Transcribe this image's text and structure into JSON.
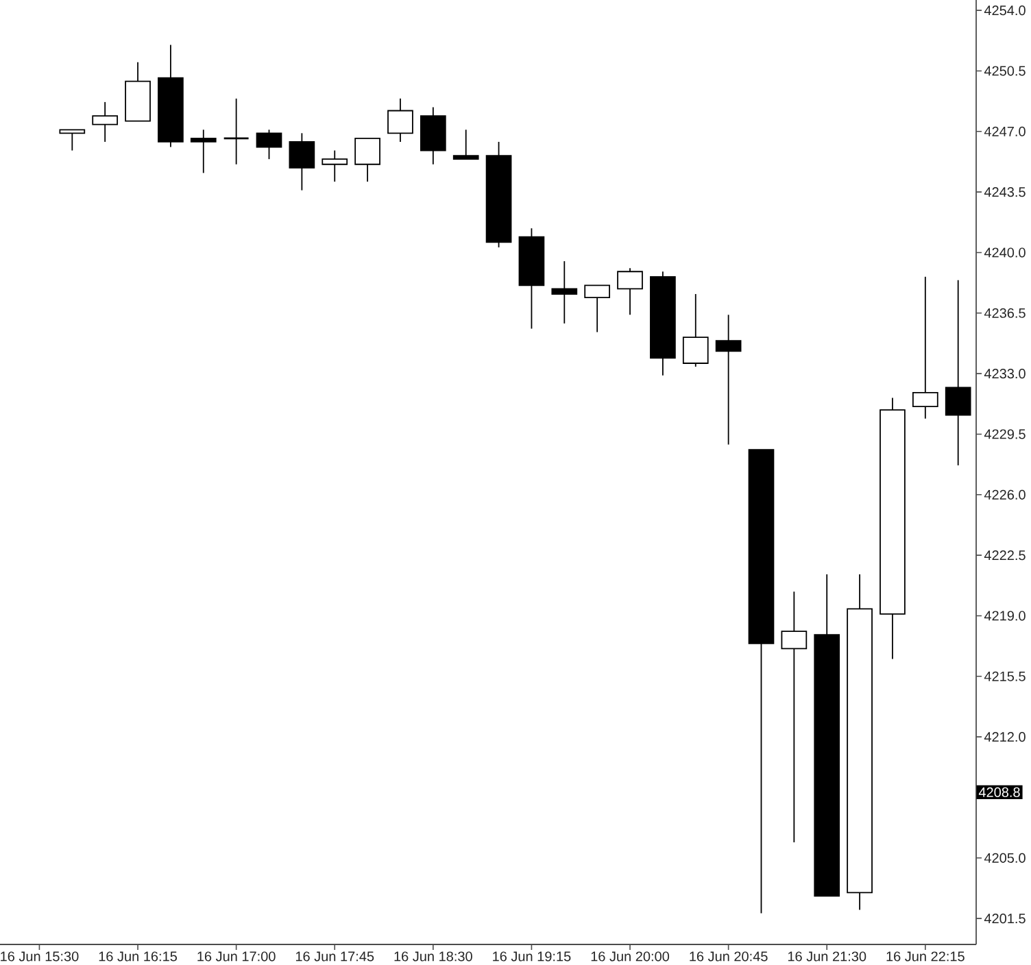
{
  "chart_data": {
    "type": "candlestick",
    "categories": [
      "16 Jun 15:30",
      null,
      null,
      "16 Jun 16:15",
      null,
      null,
      "16 Jun 17:00",
      null,
      null,
      "16 Jun 17:45",
      null,
      null,
      "16 Jun 18:30",
      null,
      null,
      "16 Jun 19:15",
      null,
      null,
      "16 Jun 20:00",
      null,
      null,
      "16 Jun 20:45",
      null,
      null,
      "16 Jun 21:30",
      null,
      null,
      "16 Jun 22:15",
      null
    ],
    "ohlc": [
      null,
      [
        4246.9,
        4247.1,
        4245.9,
        4247.1
      ],
      [
        4247.4,
        4248.7,
        4246.4,
        4247.9
      ],
      [
        4247.6,
        4251.0,
        4247.6,
        4249.9
      ],
      [
        4250.1,
        4252.0,
        4246.1,
        4246.4
      ],
      [
        4246.6,
        4247.1,
        4244.6,
        4246.4
      ],
      [
        4246.6,
        4248.9,
        4245.1,
        4246.6
      ],
      [
        4246.9,
        4247.1,
        4245.4,
        4246.1
      ],
      [
        4246.4,
        4246.9,
        4243.6,
        4244.9
      ],
      [
        4245.1,
        4245.9,
        4244.1,
        4245.4
      ],
      [
        4245.1,
        4246.6,
        4244.1,
        4246.6
      ],
      [
        4246.9,
        4248.9,
        4246.4,
        4248.2
      ],
      [
        4247.9,
        4248.4,
        4245.1,
        4245.9
      ],
      [
        4245.6,
        4247.1,
        4245.4,
        4245.4
      ],
      [
        4245.6,
        4246.4,
        4240.3,
        4240.6
      ],
      [
        4240.9,
        4241.4,
        4235.6,
        4238.1
      ],
      [
        4237.9,
        4239.5,
        4235.9,
        4237.6
      ],
      [
        4237.4,
        4238.1,
        4235.4,
        4238.1
      ],
      [
        4237.9,
        4239.1,
        4236.4,
        4238.9
      ],
      [
        4238.6,
        4238.9,
        4232.9,
        4233.9
      ],
      [
        4233.6,
        4237.6,
        4233.4,
        4235.1
      ],
      [
        4234.9,
        4236.4,
        4228.9,
        4234.3
      ],
      [
        4228.6,
        4228.6,
        4201.8,
        4217.4
      ],
      [
        4217.1,
        4220.4,
        4205.9,
        4218.1
      ],
      [
        4217.9,
        4221.4,
        4202.8,
        4202.8
      ],
      [
        4203.0,
        4221.4,
        4202.0,
        4219.4
      ],
      [
        4219.1,
        4231.6,
        4216.5,
        4230.9
      ],
      [
        4231.1,
        4238.6,
        4230.4,
        4231.9
      ],
      [
        4232.2,
        4238.4,
        4227.7,
        4230.6
      ]
    ],
    "color": "#000000",
    "ylim": [
      4200.0,
      4254.6
    ],
    "yticks": [
      4201.5,
      {
        "value": 4205,
        "label": "4205.0"
      },
      {
        "value": 4208.5,
        "label": null
      },
      {
        "value": 4212,
        "label": "4212.0"
      },
      4215.5,
      {
        "value": 4219,
        "label": "4219.0"
      },
      4222.5,
      {
        "value": 4226,
        "label": "4226.0"
      },
      4229.5,
      {
        "value": 4233,
        "label": "4233.0"
      },
      4236.5,
      {
        "value": 4240,
        "label": "4240.0"
      },
      4243.5,
      {
        "value": 4247,
        "label": "4247.0"
      },
      4250.5,
      {
        "value": 4254,
        "label": "4254.0"
      }
    ],
    "annotations": [
      {
        "text": "4208.8",
        "y": 4208.8
      }
    ]
  }
}
